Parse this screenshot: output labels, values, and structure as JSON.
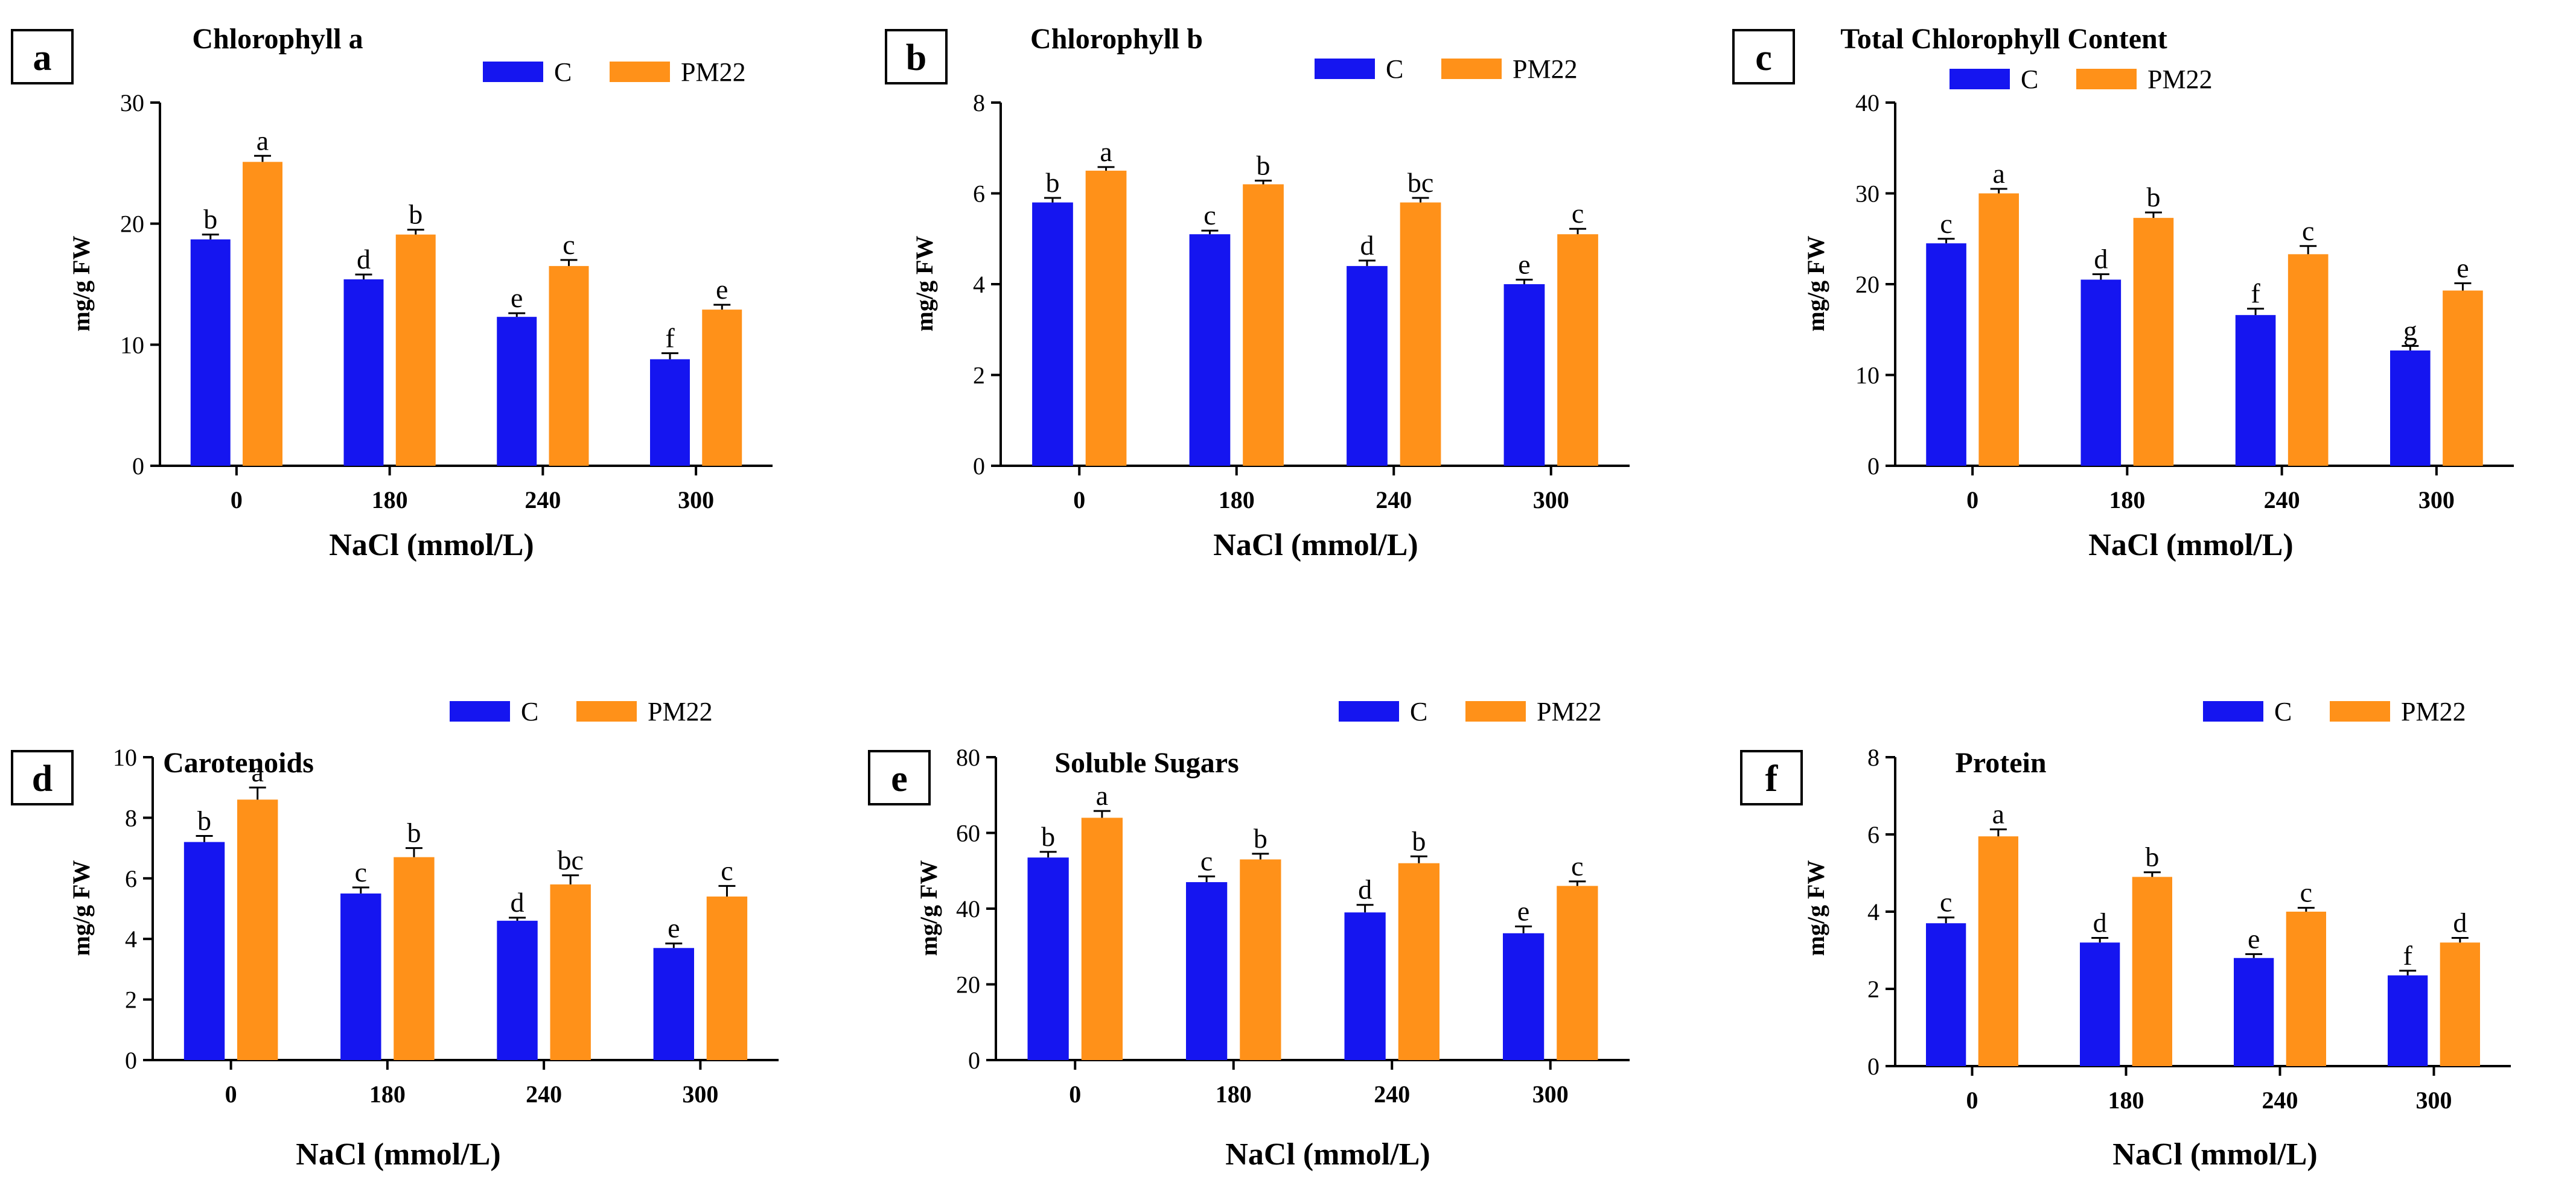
{
  "colors": {
    "control": "#1515F0",
    "treatment": "#FF9119",
    "axis": "#000000",
    "error": "#000000"
  },
  "x_axis_label": "NaCl (mmol/L)",
  "y_axis_label": "mg/g FW",
  "chart_data": [
    {
      "panel": "a",
      "type": "bar",
      "title": "Chlorophyll a",
      "xlabel": "NaCl (mmol/L)",
      "ylabel": "mg/g FW",
      "ylim": [
        0,
        30
      ],
      "yticks": [
        0,
        10,
        20,
        30
      ],
      "categories": [
        "0",
        "180",
        "240",
        "300"
      ],
      "legend_position": "top-right",
      "series": [
        {
          "name": "C",
          "values": [
            18.7,
            15.4,
            12.3,
            8.8
          ],
          "errors": [
            0.4,
            0.4,
            0.3,
            0.5
          ],
          "letters": [
            "b",
            "d",
            "e",
            "f"
          ]
        },
        {
          "name": "PM22",
          "values": [
            25.1,
            19.1,
            16.5,
            12.9
          ],
          "errors": [
            0.5,
            0.4,
            0.5,
            0.4
          ],
          "letters": [
            "a",
            "b",
            "c",
            "e"
          ]
        }
      ]
    },
    {
      "panel": "b",
      "type": "bar",
      "title": "Chlorophyll b",
      "xlabel": "NaCl (mmol/L)",
      "ylabel": "mg/g FW",
      "ylim": [
        0,
        8
      ],
      "yticks": [
        0,
        2,
        4,
        6,
        8
      ],
      "categories": [
        "0",
        "180",
        "240",
        "300"
      ],
      "legend_position": "top-right",
      "series": [
        {
          "name": "C",
          "values": [
            5.8,
            5.1,
            4.4,
            4.0
          ],
          "errors": [
            0.1,
            0.08,
            0.12,
            0.1
          ],
          "letters": [
            "b",
            "c",
            "d",
            "e"
          ]
        },
        {
          "name": "PM22",
          "values": [
            6.5,
            6.2,
            5.8,
            5.1
          ],
          "errors": [
            0.08,
            0.08,
            0.1,
            0.12
          ],
          "letters": [
            "a",
            "b",
            "bc",
            "c"
          ]
        }
      ]
    },
    {
      "panel": "c",
      "type": "bar",
      "title": "Total Chlorophyll Content",
      "xlabel": "NaCl (mmol/L)",
      "ylabel": "mg/g FW",
      "ylim": [
        0,
        40
      ],
      "yticks": [
        0,
        10,
        20,
        30,
        40
      ],
      "categories": [
        "0",
        "180",
        "240",
        "300"
      ],
      "legend_position": "top",
      "series": [
        {
          "name": "C",
          "values": [
            24.5,
            20.5,
            16.6,
            12.7
          ],
          "errors": [
            0.5,
            0.6,
            0.7,
            0.5
          ],
          "letters": [
            "c",
            "d",
            "f",
            "g"
          ]
        },
        {
          "name": "PM22",
          "values": [
            30.0,
            27.3,
            23.3,
            19.3
          ],
          "errors": [
            0.5,
            0.6,
            0.9,
            0.8
          ],
          "letters": [
            "a",
            "b",
            "c",
            "e"
          ]
        }
      ]
    },
    {
      "panel": "d",
      "type": "bar",
      "title": "Carotenoids",
      "xlabel": "NaCl (mmol/L)",
      "ylabel": "mg/g FW",
      "ylim": [
        0,
        10
      ],
      "yticks": [
        0,
        2,
        4,
        6,
        8,
        10
      ],
      "categories": [
        "0",
        "180",
        "240",
        "300"
      ],
      "legend_position": "top-right",
      "series": [
        {
          "name": "C",
          "values": [
            7.2,
            5.5,
            4.6,
            3.7
          ],
          "errors": [
            0.2,
            0.2,
            0.1,
            0.15
          ],
          "letters": [
            "b",
            "c",
            "d",
            "e"
          ]
        },
        {
          "name": "PM22",
          "values": [
            8.6,
            6.7,
            5.8,
            5.4
          ],
          "errors": [
            0.4,
            0.3,
            0.3,
            0.35
          ],
          "letters": [
            "a",
            "b",
            "bc",
            "c"
          ]
        }
      ]
    },
    {
      "panel": "e",
      "type": "bar",
      "title": "Soluble Sugars",
      "xlabel": "NaCl (mmol/L)",
      "ylabel": "mg/g FW",
      "ylim": [
        0,
        80
      ],
      "yticks": [
        0,
        20,
        40,
        60,
        80
      ],
      "categories": [
        "0",
        "180",
        "240",
        "300"
      ],
      "legend_position": "top-right",
      "series": [
        {
          "name": "C",
          "values": [
            53.5,
            47.0,
            39.0,
            33.5
          ],
          "errors": [
            1.5,
            1.5,
            2.0,
            1.8
          ],
          "letters": [
            "b",
            "c",
            "d",
            "e"
          ]
        },
        {
          "name": "PM22",
          "values": [
            64.0,
            53.0,
            52.0,
            46.0
          ],
          "errors": [
            1.8,
            1.5,
            1.8,
            1.2
          ],
          "letters": [
            "a",
            "b",
            "b",
            "c"
          ]
        }
      ]
    },
    {
      "panel": "f",
      "type": "bar",
      "title": "Protein",
      "xlabel": "NaCl (mmol/L)",
      "ylabel": "mg/g FW",
      "ylim": [
        0,
        8
      ],
      "yticks": [
        0,
        2,
        4,
        6,
        8
      ],
      "categories": [
        "0",
        "180",
        "240",
        "300"
      ],
      "legend_position": "top-right",
      "series": [
        {
          "name": "C",
          "values": [
            3.7,
            3.2,
            2.8,
            2.35
          ],
          "errors": [
            0.15,
            0.12,
            0.1,
            0.12
          ],
          "letters": [
            "c",
            "d",
            "e",
            "f"
          ]
        },
        {
          "name": "PM22",
          "values": [
            5.95,
            4.9,
            4.0,
            3.2
          ],
          "errors": [
            0.18,
            0.12,
            0.1,
            0.12
          ],
          "letters": [
            "a",
            "b",
            "c",
            "d"
          ]
        }
      ]
    }
  ]
}
